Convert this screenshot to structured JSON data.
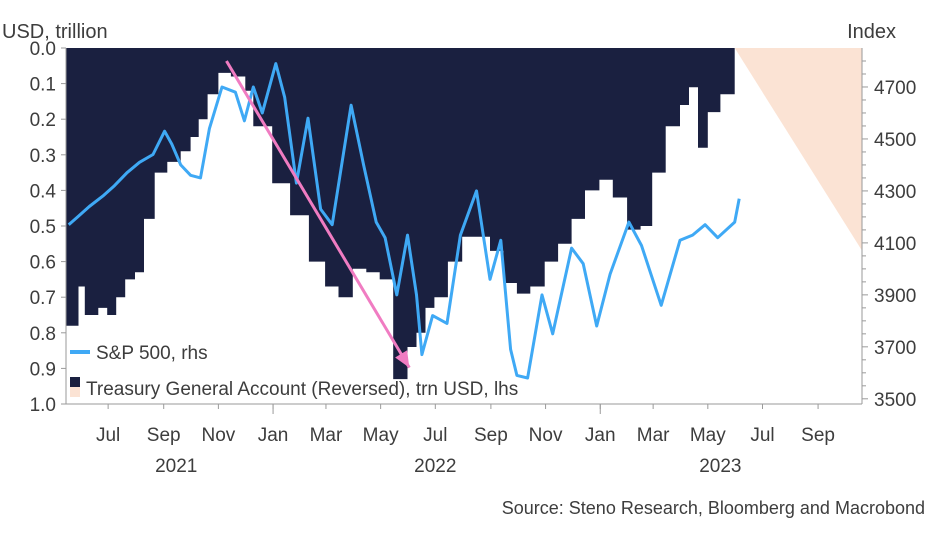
{
  "chart_data": {
    "type": "line",
    "title": "",
    "left_axis": {
      "label": "USD, trillion",
      "range": [
        1.0,
        0.0
      ],
      "reversed": true,
      "ticks": [
        "0.0",
        "0.1",
        "0.2",
        "0.3",
        "0.4",
        "0.5",
        "0.6",
        "0.7",
        "0.8",
        "0.9",
        "1.0"
      ]
    },
    "right_axis": {
      "label": "Index",
      "range": [
        3480,
        4850
      ],
      "ticks": [
        "3500",
        "3700",
        "3900",
        "4100",
        "4300",
        "4500",
        "4700"
      ]
    },
    "x_axis": {
      "range": [
        "2021-05-15",
        "2023-10-20"
      ],
      "month_ticks": [
        {
          "label": "Jul",
          "date": "2021-07-01"
        },
        {
          "label": "Sep",
          "date": "2021-09-01"
        },
        {
          "label": "Nov",
          "date": "2021-11-01"
        },
        {
          "label": "Jan",
          "date": "2022-01-01"
        },
        {
          "label": "Mar",
          "date": "2022-03-01"
        },
        {
          "label": "May",
          "date": "2022-05-01"
        },
        {
          "label": "Jul",
          "date": "2022-07-01"
        },
        {
          "label": "Sep",
          "date": "2022-09-01"
        },
        {
          "label": "Nov",
          "date": "2022-11-01"
        },
        {
          "label": "Jan",
          "date": "2023-01-01"
        },
        {
          "label": "Mar",
          "date": "2023-03-01"
        },
        {
          "label": "May",
          "date": "2023-05-01"
        },
        {
          "label": "Jul",
          "date": "2023-07-01"
        },
        {
          "label": "Sep",
          "date": "2023-09-01"
        }
      ],
      "year_labels": [
        {
          "label": "2021",
          "date": "2021-09-15"
        },
        {
          "label": "2022",
          "date": "2022-07-01"
        },
        {
          "label": "2023",
          "date": "2023-05-15"
        }
      ],
      "year_separators": [
        "2022-01-01",
        "2023-01-01"
      ]
    },
    "series": [
      {
        "name": "S&P 500, rhs",
        "axis": "right",
        "color": "#3fa9f5",
        "points": [
          [
            "2021-05-18",
            4170
          ],
          [
            "2021-05-28",
            4200
          ],
          [
            "2021-06-10",
            4240
          ],
          [
            "2021-06-25",
            4280
          ],
          [
            "2021-07-08",
            4320
          ],
          [
            "2021-07-22",
            4370
          ],
          [
            "2021-08-05",
            4410
          ],
          [
            "2021-08-20",
            4440
          ],
          [
            "2021-09-02",
            4530
          ],
          [
            "2021-09-10",
            4480
          ],
          [
            "2021-09-20",
            4400
          ],
          [
            "2021-10-01",
            4360
          ],
          [
            "2021-10-12",
            4350
          ],
          [
            "2021-10-22",
            4540
          ],
          [
            "2021-11-05",
            4700
          ],
          [
            "2021-11-20",
            4680
          ],
          [
            "2021-11-30",
            4570
          ],
          [
            "2021-12-10",
            4700
          ],
          [
            "2021-12-20",
            4600
          ],
          [
            "2022-01-04",
            4790
          ],
          [
            "2022-01-14",
            4660
          ],
          [
            "2022-01-27",
            4330
          ],
          [
            "2022-02-09",
            4580
          ],
          [
            "2022-02-23",
            4230
          ],
          [
            "2022-03-08",
            4170
          ],
          [
            "2022-03-29",
            4630
          ],
          [
            "2022-04-12",
            4400
          ],
          [
            "2022-04-26",
            4180
          ],
          [
            "2022-05-06",
            4120
          ],
          [
            "2022-05-19",
            3900
          ],
          [
            "2022-05-31",
            4130
          ],
          [
            "2022-06-10",
            3900
          ],
          [
            "2022-06-16",
            3670
          ],
          [
            "2022-06-28",
            3820
          ],
          [
            "2022-07-14",
            3790
          ],
          [
            "2022-07-29",
            4130
          ],
          [
            "2022-08-16",
            4300
          ],
          [
            "2022-08-31",
            3960
          ],
          [
            "2022-09-12",
            4110
          ],
          [
            "2022-09-23",
            3690
          ],
          [
            "2022-09-30",
            3590
          ],
          [
            "2022-10-12",
            3580
          ],
          [
            "2022-10-28",
            3900
          ],
          [
            "2022-11-09",
            3750
          ],
          [
            "2022-11-30",
            4080
          ],
          [
            "2022-12-13",
            4020
          ],
          [
            "2022-12-28",
            3780
          ],
          [
            "2023-01-12",
            3980
          ],
          [
            "2023-02-02",
            4180
          ],
          [
            "2023-02-16",
            4090
          ],
          [
            "2023-03-10",
            3860
          ],
          [
            "2023-03-31",
            4110
          ],
          [
            "2023-04-14",
            4130
          ],
          [
            "2023-04-28",
            4170
          ],
          [
            "2023-05-12",
            4120
          ],
          [
            "2023-05-31",
            4180
          ],
          [
            "2023-06-05",
            4270
          ]
        ]
      },
      {
        "name": "Treasury General Account (Reversed), trn USD, lhs",
        "axis": "left",
        "color": "#1a2040",
        "fill": "area-from-top",
        "points": [
          [
            "2021-05-15",
            0.78
          ],
          [
            "2021-05-29",
            0.67
          ],
          [
            "2021-06-05",
            0.75
          ],
          [
            "2021-06-20",
            0.73
          ],
          [
            "2021-06-30",
            0.75
          ],
          [
            "2021-07-10",
            0.7
          ],
          [
            "2021-07-20",
            0.65
          ],
          [
            "2021-07-31",
            0.63
          ],
          [
            "2021-08-10",
            0.48
          ],
          [
            "2021-08-22",
            0.35
          ],
          [
            "2021-09-05",
            0.32
          ],
          [
            "2021-09-20",
            0.29
          ],
          [
            "2021-10-01",
            0.25
          ],
          [
            "2021-10-10",
            0.2
          ],
          [
            "2021-10-20",
            0.13
          ],
          [
            "2021-11-01",
            0.07
          ],
          [
            "2021-11-15",
            0.08
          ],
          [
            "2021-12-01",
            0.12
          ],
          [
            "2021-12-10",
            0.22
          ],
          [
            "2021-12-31",
            0.38
          ],
          [
            "2022-01-20",
            0.47
          ],
          [
            "2022-02-10",
            0.6
          ],
          [
            "2022-02-28",
            0.67
          ],
          [
            "2022-03-15",
            0.7
          ],
          [
            "2022-03-31",
            0.62
          ],
          [
            "2022-04-15",
            0.63
          ],
          [
            "2022-04-30",
            0.65
          ],
          [
            "2022-05-15",
            0.93
          ],
          [
            "2022-05-31",
            0.84
          ],
          [
            "2022-06-10",
            0.8
          ],
          [
            "2022-06-20",
            0.73
          ],
          [
            "2022-06-30",
            0.7
          ],
          [
            "2022-07-15",
            0.6
          ],
          [
            "2022-07-31",
            0.53
          ],
          [
            "2022-08-15",
            0.53
          ],
          [
            "2022-08-31",
            0.57
          ],
          [
            "2022-09-15",
            0.66
          ],
          [
            "2022-09-30",
            0.69
          ],
          [
            "2022-10-15",
            0.67
          ],
          [
            "2022-10-31",
            0.6
          ],
          [
            "2022-11-15",
            0.55
          ],
          [
            "2022-11-30",
            0.48
          ],
          [
            "2022-12-15",
            0.4
          ],
          [
            "2022-12-31",
            0.37
          ],
          [
            "2023-01-15",
            0.42
          ],
          [
            "2023-01-31",
            0.51
          ],
          [
            "2023-02-15",
            0.5
          ],
          [
            "2023-02-28",
            0.35
          ],
          [
            "2023-03-15",
            0.22
          ],
          [
            "2023-03-31",
            0.16
          ],
          [
            "2023-04-10",
            0.11
          ],
          [
            "2023-04-20",
            0.28
          ],
          [
            "2023-05-01",
            0.18
          ],
          [
            "2023-05-15",
            0.13
          ],
          [
            "2023-05-31",
            0.05
          ]
        ]
      }
    ],
    "annotations": [
      {
        "type": "arrow",
        "color": "#f07cc2",
        "from": [
          "2021-11-10",
          4800
        ],
        "to": [
          "2022-06-02",
          3620
        ],
        "axis": "right"
      },
      {
        "type": "shaded-wedge",
        "color": "#fbe3d4",
        "top_from_date": "2023-05-31",
        "top_to_date": "2023-10-20",
        "apex_value": 4070,
        "axis": "right"
      }
    ],
    "grid": false,
    "legend": {
      "position": "bottom-left",
      "entries": [
        {
          "label": "S&P 500, rhs",
          "swatch": "line",
          "color": "#3fa9f5"
        },
        {
          "label": "Treasury General Account (Reversed), trn USD, lhs",
          "swatch": "box",
          "colors": [
            "#1a2040",
            "#fbe3d4"
          ]
        }
      ]
    },
    "source": "Source: Steno Research, Bloomberg and Macrobond"
  }
}
